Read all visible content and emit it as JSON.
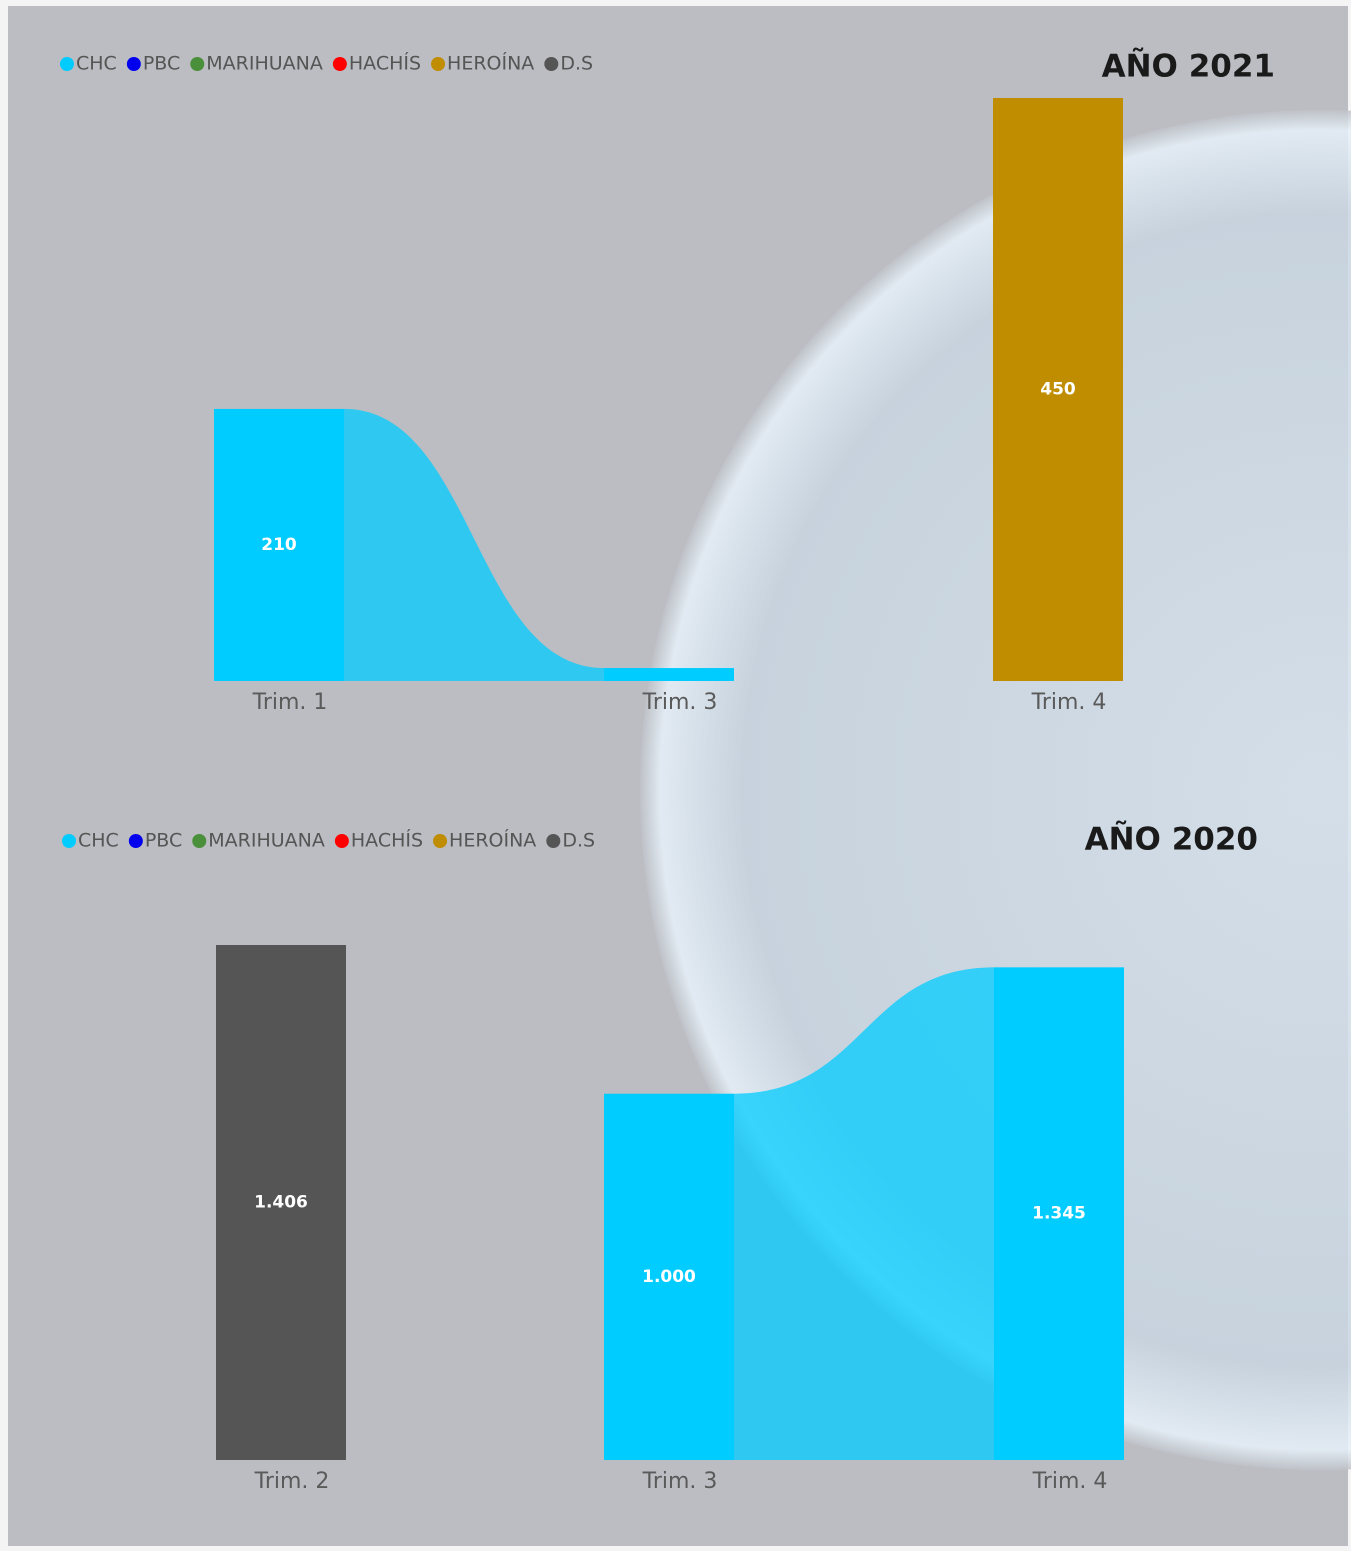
{
  "chart_data": [
    {
      "type": "ribbon",
      "title": "AÑO 2021",
      "categories": [
        "Trim. 1",
        "Trim. 3",
        "Trim. 4"
      ],
      "series": [
        {
          "name": "CHC",
          "color": "#00ccff",
          "values": [
            210,
            10,
            null
          ],
          "value_labels": [
            "210",
            null,
            null
          ]
        },
        {
          "name": "PBC",
          "color": "#0000ee",
          "values": [
            null,
            null,
            null
          ]
        },
        {
          "name": "MARIHUANA",
          "color": "#4a8f3a",
          "values": [
            null,
            null,
            null
          ]
        },
        {
          "name": "HACHÍS",
          "color": "#ff0000",
          "values": [
            null,
            null,
            null
          ]
        },
        {
          "name": "HEROÍNA",
          "color": "#c08c00",
          "values": [
            null,
            null,
            450
          ],
          "value_labels": [
            null,
            null,
            "450"
          ]
        },
        {
          "name": "D.S",
          "color": "#555555",
          "values": [
            null,
            null,
            null
          ]
        }
      ]
    },
    {
      "type": "ribbon",
      "title": "AÑO 2020",
      "categories": [
        "Trim. 2",
        "Trim. 3",
        "Trim. 4"
      ],
      "series": [
        {
          "name": "CHC",
          "color": "#00ccff",
          "values": [
            null,
            1000,
            1345
          ],
          "value_labels": [
            null,
            "1.000",
            "1.345"
          ]
        },
        {
          "name": "PBC",
          "color": "#0000ee",
          "values": [
            null,
            null,
            null
          ]
        },
        {
          "name": "MARIHUANA",
          "color": "#4a8f3a",
          "values": [
            null,
            null,
            null
          ]
        },
        {
          "name": "HACHÍS",
          "color": "#ff0000",
          "values": [
            null,
            null,
            null
          ]
        },
        {
          "name": "HEROÍNA",
          "color": "#c08c00",
          "values": [
            null,
            null,
            null
          ]
        },
        {
          "name": "D.S",
          "color": "#555555",
          "values": [
            1406,
            null,
            null
          ],
          "value_labels": [
            "1.406",
            null,
            null
          ]
        }
      ]
    }
  ]
}
